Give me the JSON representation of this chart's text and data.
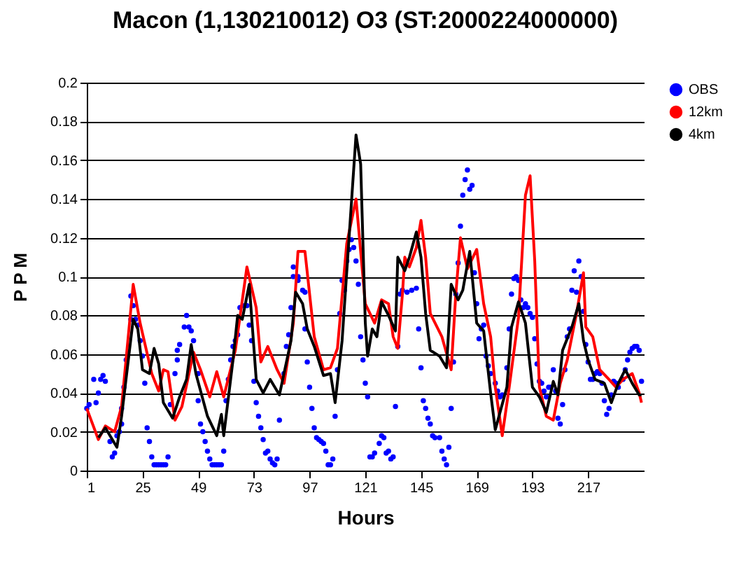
{
  "chart_data": {
    "type": "line",
    "title": "Macon (1,130210012) O3 (ST:2000224000000)",
    "xlabel": "Hours",
    "ylabel": "P P M",
    "xlim": [
      1,
      241
    ],
    "xticks": [
      1,
      25,
      49,
      73,
      97,
      121,
      145,
      169,
      193,
      217
    ],
    "ylim": [
      0,
      0.2
    ],
    "yticks": [
      0,
      0.02,
      0.04,
      0.06,
      0.08,
      0.1,
      0.12,
      0.14,
      0.16,
      0.18,
      0.2
    ],
    "grid": "y",
    "legend": "right",
    "series": [
      {
        "name": "OBS",
        "type": "scatter",
        "marker": "circle",
        "color": "#0000ff",
        "x": [
          1,
          2,
          4,
          5,
          6,
          7,
          8,
          9,
          11,
          12,
          13,
          14,
          15,
          16,
          16,
          17,
          18,
          20,
          20,
          21,
          22,
          23,
          24,
          25,
          26,
          27,
          28,
          29,
          30,
          31,
          32,
          33,
          34,
          35,
          36,
          37,
          39,
          40,
          40,
          41,
          43,
          44,
          45,
          46,
          47,
          49,
          49,
          50,
          51,
          52,
          53,
          54,
          55,
          56,
          57,
          58,
          59,
          60,
          61,
          62,
          63,
          64,
          65,
          66,
          67,
          69,
          70,
          71,
          72,
          73,
          74,
          75,
          76,
          77,
          78,
          79,
          80,
          81,
          82,
          83,
          84,
          86,
          87,
          88,
          89,
          90,
          90,
          92,
          92,
          94,
          95,
          95,
          96,
          97,
          98,
          99,
          100,
          101,
          102,
          103,
          104,
          105,
          106,
          107,
          108,
          109,
          110,
          111,
          112,
          113,
          114,
          115,
          116,
          117,
          118,
          119,
          120,
          121,
          122,
          123,
          124,
          125,
          127,
          128,
          129,
          130,
          131,
          132,
          133,
          134,
          135,
          136,
          137,
          139,
          141,
          143,
          144,
          145,
          146,
          147,
          148,
          149,
          150,
          151,
          153,
          154,
          155,
          156,
          157,
          158,
          159,
          160,
          161,
          162,
          163,
          164,
          165,
          166,
          167,
          168,
          169,
          170,
          171,
          172,
          173,
          174,
          175,
          177,
          178,
          179,
          180,
          182,
          183,
          184,
          185,
          186,
          187,
          188,
          189,
          190,
          191,
          192,
          193,
          194,
          195,
          196,
          197,
          198,
          199,
          200,
          201,
          202,
          203,
          204,
          205,
          206,
          207,
          208,
          209,
          210,
          211,
          212,
          213,
          214,
          215,
          216,
          217,
          218,
          219,
          220,
          221,
          222,
          223,
          224,
          225,
          226,
          227,
          228,
          229,
          230,
          232,
          233,
          234,
          235,
          236,
          237,
          238,
          239,
          240
        ],
        "values": [
          0.032,
          0.034,
          0.047,
          0.035,
          0.04,
          0.047,
          0.049,
          0.046,
          0.015,
          0.007,
          0.009,
          0.018,
          0.02,
          0.024,
          0.032,
          0.043,
          0.057,
          0.078,
          0.09,
          0.085,
          0.078,
          0.075,
          0.067,
          0.059,
          0.045,
          0.022,
          0.015,
          0.007,
          0.003,
          0.003,
          0.003,
          0.003,
          0.003,
          0.003,
          0.007,
          0.034,
          0.05,
          0.057,
          0.062,
          0.065,
          0.074,
          0.08,
          0.074,
          0.072,
          0.067,
          0.05,
          0.036,
          0.024,
          0.02,
          0.015,
          0.01,
          0.006,
          0.003,
          0.003,
          0.003,
          0.003,
          0.003,
          0.01,
          0.036,
          0.047,
          0.057,
          0.064,
          0.067,
          0.07,
          0.084,
          0.085,
          0.085,
          0.075,
          0.067,
          0.046,
          0.035,
          0.028,
          0.022,
          0.016,
          0.009,
          0.01,
          0.006,
          0.004,
          0.003,
          0.006,
          0.026,
          0.05,
          0.064,
          0.07,
          0.084,
          0.1,
          0.105,
          0.1,
          0.098,
          0.093,
          0.092,
          0.073,
          0.056,
          0.043,
          0.032,
          0.022,
          0.017,
          0.016,
          0.015,
          0.014,
          0.01,
          0.003,
          0.003,
          0.006,
          0.028,
          0.052,
          0.081,
          0.098,
          0.093,
          0.108,
          0.114,
          0.119,
          0.115,
          0.108,
          0.096,
          0.069,
          0.057,
          0.045,
          0.038,
          0.007,
          0.007,
          0.009,
          0.014,
          0.018,
          0.017,
          0.009,
          0.01,
          0.006,
          0.007,
          0.033,
          0.064,
          0.091,
          0.093,
          0.092,
          0.093,
          0.094,
          0.073,
          0.053,
          0.036,
          0.032,
          0.027,
          0.024,
          0.018,
          0.017,
          0.017,
          0.01,
          0.006,
          0.003,
          0.012,
          0.032,
          0.056,
          0.091,
          0.107,
          0.126,
          0.142,
          0.15,
          0.155,
          0.145,
          0.147,
          0.102,
          0.086,
          0.068,
          0.073,
          0.075,
          0.059,
          0.054,
          0.05,
          0.045,
          0.041,
          0.038,
          0.039,
          0.053,
          0.073,
          0.091,
          0.099,
          0.1,
          0.098,
          0.088,
          0.084,
          0.086,
          0.084,
          0.081,
          0.079,
          0.068,
          0.055,
          0.046,
          0.045,
          0.041,
          0.038,
          0.043,
          0.043,
          0.052,
          0.041,
          0.027,
          0.024,
          0.034,
          0.052,
          0.069,
          0.073,
          0.093,
          0.103,
          0.092,
          0.108,
          0.1,
          0.082,
          0.065,
          0.056,
          0.047,
          0.047,
          0.05,
          0.051,
          0.05,
          0.045,
          0.036,
          0.029,
          0.032,
          0.039,
          0.046,
          0.045,
          0.043,
          0.047,
          0.052,
          0.057,
          0.061,
          0.063,
          0.064,
          0.064,
          0.062,
          0.046
        ]
      },
      {
        "name": "12km",
        "type": "line",
        "color": "#ff0000",
        "x": [
          1,
          6,
          9,
          13,
          16,
          21,
          24,
          29,
          32,
          34,
          36,
          39,
          42,
          47,
          50,
          54,
          57,
          60,
          65,
          70,
          74,
          76,
          79,
          83,
          86,
          90,
          92,
          95,
          99,
          103,
          106,
          109,
          113,
          117,
          121,
          125,
          128,
          131,
          133,
          135,
          137,
          138,
          140,
          143,
          145,
          147,
          149,
          154,
          158,
          160,
          162,
          165,
          169,
          172,
          175,
          177,
          180,
          183,
          187,
          190,
          192,
          194,
          196,
          199,
          202,
          205,
          208,
          212,
          215,
          216,
          219,
          222,
          226,
          229,
          232,
          236,
          239,
          240
        ],
        "values": [
          0.032,
          0.016,
          0.023,
          0.02,
          0.033,
          0.096,
          0.076,
          0.05,
          0.041,
          0.052,
          0.051,
          0.026,
          0.033,
          0.061,
          0.052,
          0.038,
          0.051,
          0.038,
          0.062,
          0.105,
          0.084,
          0.056,
          0.064,
          0.052,
          0.045,
          0.076,
          0.113,
          0.113,
          0.069,
          0.052,
          0.053,
          0.063,
          0.117,
          0.14,
          0.086,
          0.076,
          0.088,
          0.086,
          0.069,
          0.063,
          0.091,
          0.11,
          0.105,
          0.115,
          0.129,
          0.11,
          0.081,
          0.069,
          0.052,
          0.091,
          0.12,
          0.104,
          0.114,
          0.086,
          0.069,
          0.043,
          0.018,
          0.043,
          0.079,
          0.142,
          0.152,
          0.108,
          0.043,
          0.028,
          0.026,
          0.045,
          0.057,
          0.081,
          0.102,
          0.074,
          0.069,
          0.052,
          0.047,
          0.043,
          0.047,
          0.05,
          0.04,
          0.035
        ]
      },
      {
        "name": "4km",
        "type": "line",
        "color": "#000000",
        "x": [
          6,
          9,
          14,
          16,
          21,
          23,
          25,
          28,
          30,
          32,
          34,
          38,
          41,
          44,
          46,
          48,
          53,
          57,
          59,
          60,
          64,
          66,
          68,
          71,
          74,
          77,
          80,
          84,
          89,
          91,
          94,
          96,
          99,
          103,
          106,
          108,
          111,
          114,
          117,
          119,
          121,
          122,
          124,
          126,
          128,
          131,
          134,
          135,
          138,
          140,
          143,
          145,
          147,
          149,
          153,
          156,
          158,
          161,
          163,
          166,
          169,
          172,
          175,
          177,
          182,
          184,
          187,
          190,
          193,
          196,
          199,
          202,
          204,
          206,
          210,
          213,
          215,
          217,
          220,
          224,
          227,
          230,
          233,
          236,
          239,
          240
        ],
        "values": [
          0.017,
          0.022,
          0.012,
          0.028,
          0.078,
          0.073,
          0.052,
          0.05,
          0.063,
          0.055,
          0.035,
          0.027,
          0.038,
          0.047,
          0.065,
          0.05,
          0.028,
          0.018,
          0.029,
          0.018,
          0.057,
          0.08,
          0.078,
          0.096,
          0.047,
          0.04,
          0.047,
          0.039,
          0.067,
          0.092,
          0.086,
          0.073,
          0.064,
          0.049,
          0.05,
          0.035,
          0.067,
          0.12,
          0.173,
          0.158,
          0.076,
          0.059,
          0.073,
          0.069,
          0.087,
          0.08,
          0.072,
          0.11,
          0.103,
          0.11,
          0.123,
          0.11,
          0.081,
          0.062,
          0.059,
          0.053,
          0.096,
          0.088,
          0.093,
          0.113,
          0.076,
          0.072,
          0.04,
          0.021,
          0.043,
          0.074,
          0.087,
          0.076,
          0.043,
          0.038,
          0.03,
          0.046,
          0.039,
          0.062,
          0.074,
          0.086,
          0.067,
          0.057,
          0.047,
          0.045,
          0.035,
          0.045,
          0.052,
          0.045,
          0.039,
          0.039
        ]
      }
    ]
  }
}
